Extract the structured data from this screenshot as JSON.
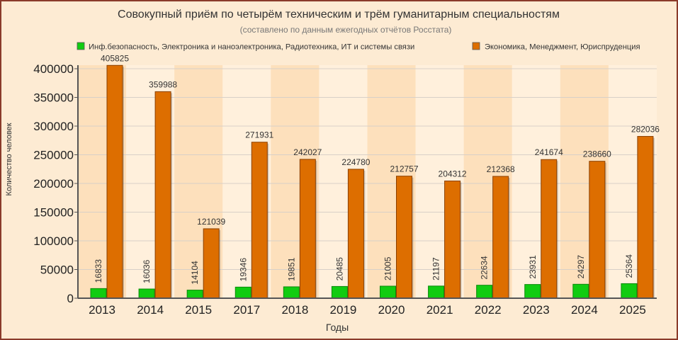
{
  "chart_data": {
    "type": "bar",
    "title": "Совокупный приём по четырём техническим и трём гуманитарным специальностям",
    "subtitle": "(составлено по данным ежегодных отчётов Росстата)",
    "xlabel": "Годы",
    "ylabel": "Количество человек",
    "ylim": [
      0,
      400000
    ],
    "yticks": [
      0,
      50000,
      100000,
      150000,
      200000,
      250000,
      300000,
      350000,
      400000
    ],
    "grid": true,
    "legend_position": "top",
    "categories": [
      "2013",
      "2014",
      "2015",
      "2017",
      "2018",
      "2019",
      "2020",
      "2021",
      "2022",
      "2023",
      "2024",
      "2025"
    ],
    "series": [
      {
        "name": "Инф.безопасность, Электроника и наноэлектроника, Радиотехника, ИТ и системы связи",
        "color": "#11cc11",
        "values": [
          16833,
          16036,
          14104,
          19346,
          19851,
          20485,
          21005,
          21197,
          22634,
          23931,
          24297,
          25364
        ]
      },
      {
        "name": "Экономика, Менеджмент, Юриспруденция",
        "color": "#dd6e00",
        "values": [
          405825,
          359988,
          121039,
          271931,
          242027,
          224780,
          212757,
          204312,
          212368,
          241674,
          238660,
          282036
        ]
      }
    ]
  }
}
